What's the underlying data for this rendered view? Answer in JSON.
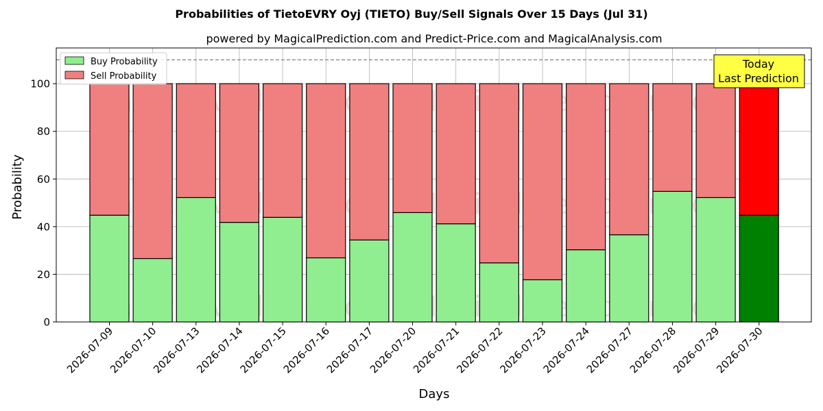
{
  "chart_data": {
    "type": "bar",
    "stacked": true,
    "title": "Probabilities of TietoEVRY Oyj (TIETO) Buy/Sell Signals Over 15 Days (Jul 31)",
    "subtitle": "powered by MagicalPrediction.com and Predict-Price.com and MagicalAnalysis.com",
    "xlabel": "Days",
    "ylabel": "Probability",
    "ylim": [
      0,
      115
    ],
    "yticks": [
      0,
      20,
      40,
      60,
      80,
      100
    ],
    "grid": true,
    "legend_position": "top-left",
    "reference_line": 110,
    "categories": [
      "2026-07-09",
      "2026-07-10",
      "2026-07-13",
      "2026-07-14",
      "2026-07-15",
      "2026-07-16",
      "2026-07-17",
      "2026-07-20",
      "2026-07-21",
      "2026-07-22",
      "2026-07-23",
      "2026-07-24",
      "2026-07-27",
      "2026-07-28",
      "2026-07-29",
      "2026-07-30"
    ],
    "series": [
      {
        "name": "Buy Probability",
        "color": "#90ee90",
        "highlight_color": "#008000",
        "values": [
          44.8,
          26.6,
          52.2,
          41.8,
          43.9,
          26.9,
          34.4,
          45.9,
          41.2,
          24.8,
          17.7,
          30.3,
          36.6,
          54.8,
          52.2,
          44.8
        ]
      },
      {
        "name": "Sell Probability",
        "color": "#f08080",
        "highlight_color": "#ff0000",
        "values": [
          55.2,
          73.4,
          47.8,
          58.2,
          56.1,
          73.1,
          65.6,
          54.1,
          58.8,
          75.2,
          82.3,
          69.7,
          63.4,
          45.2,
          47.8,
          55.2
        ]
      }
    ],
    "highlight_index": 15,
    "annotation": {
      "lines": [
        "Today",
        "Last Prediction"
      ],
      "color": "#ffff44"
    },
    "watermarks": [
      "MagicalAnalysis.com",
      "MagicalPrediction.com"
    ]
  }
}
